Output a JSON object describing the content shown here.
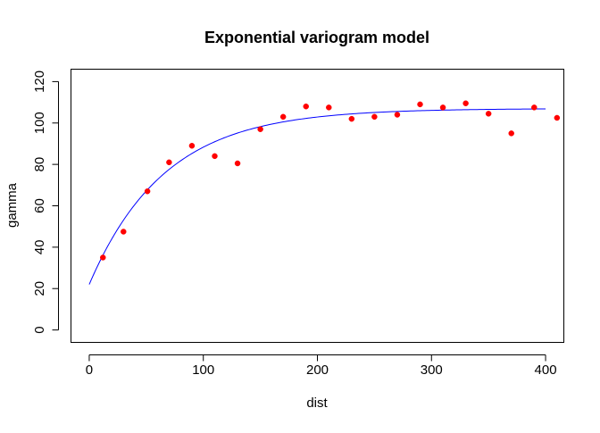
{
  "chart_data": {
    "type": "scatter",
    "title": "Exponential variogram model",
    "xlabel": "dist",
    "ylabel": "gamma",
    "xlim": [
      -16,
      416
    ],
    "ylim": [
      -6,
      126
    ],
    "x_ticks": [
      0,
      100,
      200,
      300,
      400
    ],
    "y_ticks": [
      0,
      20,
      40,
      60,
      80,
      100,
      120
    ],
    "x_tick_labels": [
      "0",
      "100",
      "200",
      "300",
      "400"
    ],
    "y_tick_labels": [
      "0",
      "20",
      "40",
      "60",
      "80",
      "100",
      "120"
    ],
    "grid": false,
    "legend": "none",
    "point_color": "#ff0000",
    "curve_color": "#0000ff",
    "points": {
      "x": [
        12,
        30,
        51,
        70,
        90,
        110,
        130,
        150,
        170,
        190,
        210,
        230,
        250,
        270,
        290,
        310,
        330,
        350,
        370,
        390,
        410
      ],
      "y": [
        35,
        47.5,
        67,
        81,
        89,
        84,
        80.5,
        97,
        103,
        108,
        107.5,
        102,
        103,
        104,
        109,
        107.5,
        109.5,
        104.5,
        95,
        107.5,
        102.5
      ]
    },
    "model_curve": {
      "type": "exponential",
      "nugget": 22,
      "sill": 107,
      "range": 66,
      "x_start": 0,
      "x_end": 400
    }
  }
}
